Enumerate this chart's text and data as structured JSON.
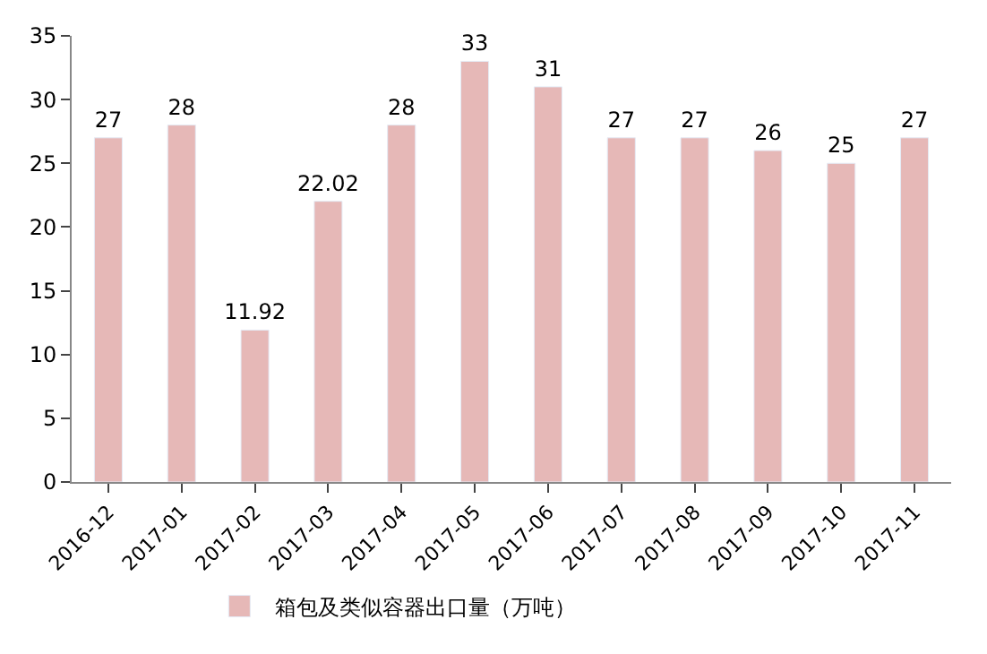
{
  "chart_data": {
    "type": "bar",
    "categories": [
      "2016-12",
      "2017-01",
      "2017-02",
      "2017-03",
      "2017-04",
      "2017-05",
      "2017-06",
      "2017-07",
      "2017-08",
      "2017-09",
      "2017-10",
      "2017-11"
    ],
    "series": [
      {
        "name": "箱包及类似容器出口量（万吨）",
        "color": "#e6b8b7",
        "values": [
          27,
          28,
          11.92,
          22.02,
          28,
          33,
          31,
          27,
          27,
          26,
          25,
          27
        ]
      }
    ],
    "ylim": [
      0,
      35
    ],
    "yticks": [
      0,
      5,
      10,
      15,
      20,
      25,
      30,
      35
    ],
    "data_labels": true,
    "grid": false,
    "legend": "bottom"
  }
}
